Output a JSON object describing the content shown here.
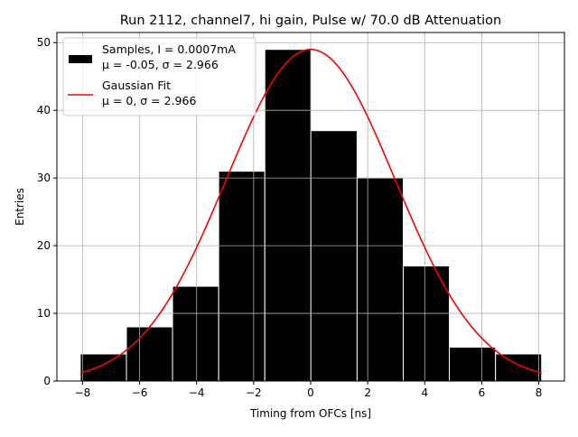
{
  "chart_data": {
    "type": "bar",
    "title": "Run 2112, channel7, hi gain, Pulse w/ 70.0 dB Attenuation",
    "xlabel": "Timing from OFCs [ns]",
    "ylabel": "Entries",
    "xlim": [
      -8.9,
      8.9
    ],
    "ylim": [
      0,
      51.5
    ],
    "xticks": [
      -8,
      -6,
      -4,
      -2,
      0,
      2,
      4,
      6,
      8
    ],
    "xtick_labels": [
      "−8",
      "−6",
      "−4",
      "−2",
      "0",
      "2",
      "4",
      "6",
      "8"
    ],
    "yticks": [
      0,
      10,
      20,
      30,
      40,
      50
    ],
    "ytick_labels": [
      "0",
      "10",
      "20",
      "30",
      "40",
      "50"
    ],
    "grid": true,
    "bin_edges_range": [
      -8.08,
      8.1
    ],
    "values": [
      4,
      8,
      14,
      31,
      49,
      37,
      30,
      17,
      5,
      4
    ],
    "bar_color": "#000000",
    "fit": {
      "mu": 0,
      "sigma": 2.966,
      "amplitude": 49,
      "color": "#ff0000"
    },
    "legend": {
      "placement": "top-left",
      "entries": [
        {
          "line1": "Samples, I = 0.0007mA",
          "line2": "μ = -0.05, σ = 2.966"
        },
        {
          "line1": "Gaussian Fit",
          "line2": "μ = 0, σ = 2.966"
        }
      ]
    }
  }
}
